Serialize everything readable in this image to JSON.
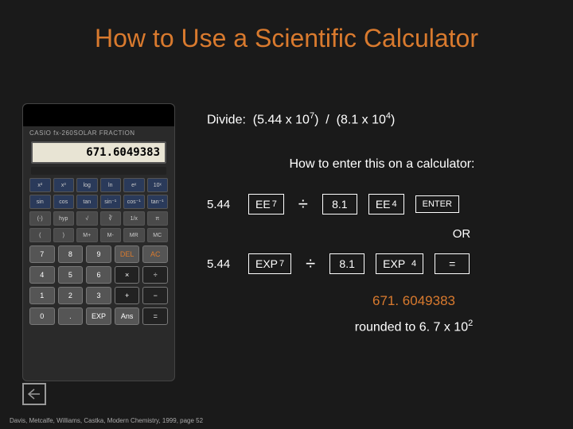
{
  "title": "How to Use a Scientific Calculator",
  "calculator": {
    "brand": "CASIO fx-260SOLAR   FRACTION",
    "display": "671.6049383",
    "smallKeys": [
      "x²",
      "x³",
      "log",
      "ln",
      "eˣ",
      "10ˣ",
      "sin",
      "cos",
      "tan",
      "sin⁻¹",
      "cos⁻¹",
      "tan⁻¹",
      "(-)",
      "hyp",
      "√",
      "∛",
      "1/x",
      "π",
      "(",
      ")",
      "M+",
      "M-",
      "MR",
      "MC"
    ],
    "bigKeys": [
      "7",
      "8",
      "9",
      "DEL",
      "AC",
      "4",
      "5",
      "6",
      "×",
      "÷",
      "1",
      "2",
      "3",
      "+",
      "−",
      "0",
      ".",
      "EXP",
      "Ans",
      "="
    ]
  },
  "problem": {
    "label": "Divide:",
    "a_coef": "5.44",
    "a_exp": "7",
    "op": "/",
    "b_coef": "8.1",
    "b_exp": "4"
  },
  "howto": "How to enter this on a calculator:",
  "row1": {
    "n1": "5.44",
    "k1a": "EE",
    "k1b": "7",
    "div": "÷",
    "n2": "8.1",
    "k2a": "EE",
    "k2b": "4",
    "enter": "ENTER"
  },
  "or": "OR",
  "row2": {
    "n1": "5.44",
    "k1a": "EXP",
    "k1b": "7",
    "div": "÷",
    "n2": "8.1",
    "k2a": "EXP",
    "k2b": "4",
    "eq": "="
  },
  "result": "671. 6049383",
  "rounded_text": "rounded to 6. 7 x 10",
  "rounded_exp": "2",
  "citation": "Davis, Metcalfe, Williams, Castka, Modern Chemistry, 1999,  page 52",
  "colors": {
    "accent": "#d97a2e",
    "bg": "#1a1a1a"
  }
}
